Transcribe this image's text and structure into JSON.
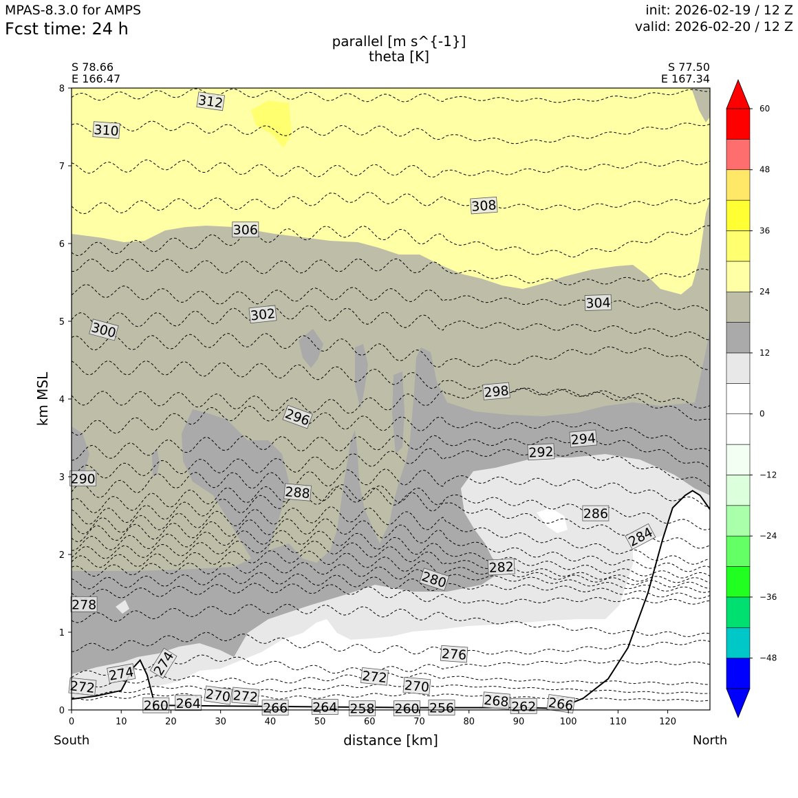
{
  "header": {
    "model": "MPAS-8.3.0 for AMPS",
    "fcst_time": "Fcst time:   24 h",
    "init": "init: 2026-02-19 / 12 Z",
    "valid": "valid: 2026-02-20 / 12 Z"
  },
  "endpoints": {
    "left_lat": "S 78.66",
    "left_lon": "E 166.47",
    "right_lat": "S 77.50",
    "right_lon": "E 167.34",
    "left_side": "South",
    "right_side": "North"
  },
  "chart_data": {
    "type": "cross-section contour",
    "title": "parallel [m s^{-1}]",
    "subtitle": "theta [K]",
    "xlabel": "distance [km]",
    "ylabel": "km MSL",
    "xlim": [
      0,
      128.5
    ],
    "ylim": [
      0,
      8
    ],
    "x_ticks": [
      0,
      10,
      20,
      30,
      40,
      50,
      60,
      70,
      80,
      90,
      100,
      110,
      120
    ],
    "y_ticks": [
      0,
      1,
      2,
      3,
      4,
      5,
      6,
      7,
      8
    ],
    "colorbar": {
      "ticks": [
        60,
        48,
        36,
        24,
        12,
        0,
        -12,
        -24,
        -36,
        -48
      ],
      "tick_labels": [
        "60",
        "48",
        "36",
        "24",
        "12",
        "0",
        "−12",
        "−24",
        "−36",
        "−48"
      ],
      "levels": [
        -54,
        -48,
        -42,
        -36,
        -30,
        -24,
        -18,
        -12,
        -6,
        0,
        6,
        12,
        18,
        24,
        30,
        36,
        42,
        48,
        54,
        60
      ],
      "colors": [
        "#0000ff",
        "#00c8c8",
        "#00e070",
        "#20ff20",
        "#64ff64",
        "#aaffaa",
        "#dcffdc",
        "#f2fff2",
        "#ffffff",
        "#ffffff",
        "#e8e8e8",
        "#aaaaaa",
        "#bebea8",
        "#ffffa6",
        "#ffff70",
        "#ffff34",
        "#ffe868",
        "#ff6e6e",
        "#ff0000"
      ],
      "under_color": "#0000ff",
      "over_color": "#ff0000"
    },
    "shaded_regions": [
      {
        "level": "18-24",
        "color": "#bebea8"
      },
      {
        "level": "24-30",
        "color": "#ffffa6"
      },
      {
        "level": "30-36",
        "color": "#ffff70"
      },
      {
        "level": "12-18",
        "color": "#aaaaaa"
      },
      {
        "level": "6-12",
        "color": "#e8e8e8"
      },
      {
        "level": "0-6",
        "color": "#ffffff"
      }
    ],
    "theta_labels": [
      {
        "text": "312",
        "x": 28.0,
        "y": 7.83,
        "rot": 8
      },
      {
        "text": "310",
        "x": 7.0,
        "y": 7.46,
        "rot": 4
      },
      {
        "text": "308",
        "x": 83.0,
        "y": 6.49,
        "rot": -4
      },
      {
        "text": "306",
        "x": 35.0,
        "y": 6.18,
        "rot": 0
      },
      {
        "text": "304",
        "x": 106.0,
        "y": 5.24,
        "rot": -2
      },
      {
        "text": "302",
        "x": 38.5,
        "y": 5.09,
        "rot": -6
      },
      {
        "text": "300",
        "x": 6.5,
        "y": 4.89,
        "rot": 15
      },
      {
        "text": "298",
        "x": 85.5,
        "y": 4.1,
        "rot": -5
      },
      {
        "text": "296",
        "x": 45.5,
        "y": 3.77,
        "rot": 20
      },
      {
        "text": "294",
        "x": 103.0,
        "y": 3.49,
        "rot": -5
      },
      {
        "text": "292",
        "x": 94.5,
        "y": 3.32,
        "rot": -3
      },
      {
        "text": "290",
        "x": 2.3,
        "y": 2.98,
        "rot": 0
      },
      {
        "text": "288",
        "x": 45.5,
        "y": 2.8,
        "rot": 5
      },
      {
        "text": "286",
        "x": 105.5,
        "y": 2.53,
        "rot": 0
      },
      {
        "text": "284",
        "x": 114.5,
        "y": 2.23,
        "rot": -28
      },
      {
        "text": "282",
        "x": 86.5,
        "y": 1.84,
        "rot": -3
      },
      {
        "text": "280",
        "x": 73.0,
        "y": 1.68,
        "rot": 18
      },
      {
        "text": "278",
        "x": 2.5,
        "y": 1.36,
        "rot": 0
      },
      {
        "text": "276",
        "x": 77.0,
        "y": 0.72,
        "rot": 4
      },
      {
        "text": "274",
        "x": 10.0,
        "y": 0.47,
        "rot": -10
      },
      {
        "text": "274",
        "x": 18.5,
        "y": 0.6,
        "rot": -58
      },
      {
        "text": "272",
        "x": 2.2,
        "y": 0.3,
        "rot": 6
      },
      {
        "text": "272",
        "x": 61.0,
        "y": 0.43,
        "rot": 6
      },
      {
        "text": "270",
        "x": 69.5,
        "y": 0.31,
        "rot": 5
      },
      {
        "text": "272",
        "x": 35.0,
        "y": 0.18,
        "rot": 5
      },
      {
        "text": "270",
        "x": 29.5,
        "y": 0.19,
        "rot": 8
      },
      {
        "text": "268",
        "x": 85.5,
        "y": 0.12,
        "rot": 5
      },
      {
        "text": "266",
        "x": 98.5,
        "y": 0.08,
        "rot": 8
      },
      {
        "text": "262",
        "x": 91.0,
        "y": 0.05,
        "rot": 0
      },
      {
        "text": "264",
        "x": 23.5,
        "y": 0.09,
        "rot": 0
      },
      {
        "text": "260",
        "x": 17.0,
        "y": 0.06,
        "rot": 0
      },
      {
        "text": "266",
        "x": 41.0,
        "y": 0.03,
        "rot": 0
      },
      {
        "text": "264",
        "x": 51.0,
        "y": 0.04,
        "rot": 0
      },
      {
        "text": "258",
        "x": 58.5,
        "y": 0.02,
        "rot": 0
      },
      {
        "text": "260",
        "x": 67.5,
        "y": 0.02,
        "rot": 0
      },
      {
        "text": "256",
        "x": 74.5,
        "y": 0.03,
        "rot": 0
      }
    ],
    "theta_lines": [
      {
        "theta": 312,
        "y": [
          7.88,
          7.9,
          7.92,
          7.95,
          7.93,
          7.9,
          7.88,
          7.87,
          7.88,
          7.86,
          7.85,
          7.83,
          7.88,
          7.93,
          7.98
        ],
        "amp": 0.05
      },
      {
        "theta": 310,
        "y": [
          7.48,
          7.5,
          7.52,
          7.48,
          7.46,
          7.44,
          7.46,
          7.45,
          7.4,
          7.34,
          7.3,
          7.36,
          7.42,
          7.5,
          7.55
        ],
        "amp": 0.06
      },
      {
        "theta": 309,
        "y": [
          6.97,
          6.98,
          7.02,
          6.98,
          6.95,
          6.92,
          6.94,
          6.95,
          6.92,
          6.9,
          6.93,
          6.97,
          7.0,
          7.03,
          7.05
        ],
        "amp": 0.07
      },
      {
        "theta": 308,
        "y": [
          6.45,
          6.46,
          6.5,
          6.52,
          6.5,
          6.54,
          6.6,
          6.58,
          6.55,
          6.5,
          6.47,
          6.46,
          6.5,
          6.53,
          6.55
        ],
        "amp": 0.07
      },
      {
        "theta": 306,
        "y": [
          5.92,
          5.95,
          5.98,
          6.03,
          6.08,
          6.12,
          6.16,
          6.12,
          6.05,
          5.98,
          5.9,
          5.86,
          5.95,
          6.1,
          6.2
        ],
        "amp": 0.08
      },
      {
        "theta": 305,
        "y": [
          5.72,
          5.72,
          5.72,
          5.7,
          5.69,
          5.7,
          5.72,
          5.73,
          5.68,
          5.6,
          5.53,
          5.5,
          5.52,
          5.58,
          5.65
        ],
        "amp": 0.08
      },
      {
        "theta": 304,
        "y": [
          5.4,
          5.38,
          5.34,
          5.3,
          5.3,
          5.34,
          5.36,
          5.34,
          5.32,
          5.28,
          5.25,
          5.24,
          5.23,
          5.2,
          5.15
        ],
        "amp": 0.08
      },
      {
        "theta": 302,
        "y": [
          5.02,
          5.02,
          5.02,
          5.05,
          5.1,
          5.12,
          5.08,
          5.02,
          4.98,
          4.95,
          4.93,
          4.92,
          4.9,
          4.85,
          4.8
        ],
        "amp": 0.09
      },
      {
        "theta": 300,
        "y": [
          4.72,
          4.72,
          4.73,
          4.75,
          4.76,
          4.73,
          4.68,
          4.6,
          4.5,
          4.45,
          4.5,
          4.6,
          4.64,
          4.6,
          4.4
        ],
        "amp": 0.09
      },
      {
        "theta": 299,
        "y": [
          4.4,
          4.4,
          4.4,
          4.38,
          4.37,
          4.35,
          4.32,
          4.28,
          4.22,
          4.15,
          4.1,
          4.08,
          4.06,
          4.0,
          3.9
        ],
        "amp": 0.09
      },
      {
        "theta": 298,
        "y": [
          4.01,
          4.01,
          4.0,
          3.98,
          3.95,
          3.92,
          3.9,
          3.95,
          4.02,
          4.07,
          4.1,
          4.08,
          4.02,
          3.9,
          3.7
        ],
        "amp": 0.09
      },
      {
        "theta": 296,
        "y": [
          3.62,
          3.65,
          3.7,
          3.8,
          3.82,
          3.78,
          3.7,
          3.68,
          3.68,
          3.66,
          3.66,
          3.68,
          3.62,
          3.5,
          3.3
        ],
        "amp": 0.09
      },
      {
        "theta": 294,
        "y": [
          3.3,
          3.33,
          3.38,
          3.42,
          3.44,
          3.42,
          3.42,
          3.44,
          3.44,
          3.44,
          3.45,
          3.48,
          3.44,
          3.3,
          3.1
        ],
        "amp": 0.09
      },
      {
        "theta": 292,
        "y": [
          3.05,
          3.08,
          3.12,
          3.14,
          3.14,
          3.15,
          3.2,
          3.24,
          3.28,
          3.3,
          3.32,
          3.3,
          3.22,
          3.05,
          2.9
        ],
        "amp": 0.09
      },
      {
        "theta": 290,
        "y": [
          2.8,
          2.85,
          2.95,
          2.96,
          2.95,
          2.96,
          2.99,
          3.0,
          2.98,
          2.96,
          2.94,
          2.92,
          2.87,
          2.75,
          2.65
        ],
        "amp": 0.1
      },
      {
        "theta": 289,
        "y": [
          2.62,
          2.65,
          2.7,
          2.75,
          2.77,
          2.78,
          2.8,
          2.78,
          2.74,
          2.7,
          2.66,
          2.6,
          2.55,
          2.45,
          2.35
        ],
        "amp": 0.1
      },
      {
        "theta": 288,
        "y": [
          2.48,
          2.5,
          2.55,
          2.6,
          2.65,
          2.72,
          2.78,
          2.74,
          2.65,
          2.55,
          2.48,
          2.4,
          2.3,
          2.2,
          2.1
        ],
        "amp": 0.1
      },
      {
        "theta": 287,
        "y": [
          2.36,
          2.38,
          2.42,
          2.45,
          2.48,
          2.5,
          2.52,
          2.48,
          2.4,
          2.3,
          2.22,
          2.14,
          2.05,
          1.95,
          1.9
        ],
        "amp": 0.1
      },
      {
        "theta": 286,
        "y": [
          2.26,
          2.28,
          2.3,
          2.32,
          2.35,
          2.36,
          2.36,
          2.3,
          2.22,
          2.1,
          2.02,
          1.96,
          1.9,
          1.85,
          1.8
        ],
        "amp": 0.1
      },
      {
        "theta": 285,
        "y": [
          2.14,
          2.15,
          2.17,
          2.2,
          2.22,
          2.22,
          2.2,
          2.14,
          2.05,
          1.96,
          1.9,
          1.84,
          1.78,
          1.75,
          1.72
        ],
        "amp": 0.09
      },
      {
        "theta": 284,
        "y": [
          2.02,
          2.03,
          2.05,
          2.08,
          2.1,
          2.1,
          2.08,
          2.02,
          1.94,
          1.86,
          1.8,
          1.74,
          1.7,
          1.68,
          1.66
        ],
        "amp": 0.08
      },
      {
        "theta": 283,
        "y": [
          1.9,
          1.92,
          1.93,
          1.95,
          1.97,
          1.97,
          1.94,
          1.88,
          1.82,
          1.78,
          1.74,
          1.7,
          1.66,
          1.62,
          1.6
        ],
        "amp": 0.08
      },
      {
        "theta": 282,
        "y": [
          1.78,
          1.8,
          1.82,
          1.82,
          1.83,
          1.83,
          1.8,
          1.76,
          1.72,
          1.7,
          1.68,
          1.64,
          1.6,
          1.56,
          1.54
        ],
        "amp": 0.07
      },
      {
        "theta": 281,
        "y": [
          1.62,
          1.64,
          1.66,
          1.68,
          1.7,
          1.68,
          1.66,
          1.63,
          1.6,
          1.58,
          1.58,
          1.56,
          1.52,
          1.48,
          1.46
        ],
        "amp": 0.07
      },
      {
        "theta": 280,
        "y": [
          1.48,
          1.5,
          1.52,
          1.55,
          1.57,
          1.56,
          1.55,
          1.5,
          1.44,
          1.38,
          1.4,
          1.42,
          1.42,
          1.4,
          1.38
        ],
        "amp": 0.06
      },
      {
        "theta": 278,
        "y": [
          1.18,
          1.2,
          1.24,
          1.27,
          1.3,
          1.3,
          1.28,
          1.25,
          1.2,
          1.15,
          1.1,
          1.05,
          1.0,
          0.98,
          0.96
        ],
        "amp": 0.06
      },
      {
        "theta": 276,
        "y": [
          0.8,
          0.82,
          0.9,
          0.95,
          0.92,
          0.85,
          0.8,
          0.78,
          0.76,
          0.74,
          0.74,
          0.78,
          0.82,
          0.85,
          0.88
        ],
        "amp": 0.05
      },
      {
        "theta": 274,
        "y": [
          0.45,
          0.5,
          0.6,
          0.68,
          0.62,
          0.55,
          0.5,
          0.52,
          0.55,
          0.58,
          0.6,
          0.62,
          0.62,
          0.6,
          0.6
        ],
        "amp": 0.04
      },
      {
        "theta": 272,
        "y": [
          0.3,
          0.34,
          0.42,
          0.4,
          0.36,
          0.38,
          0.42,
          0.45,
          0.44,
          0.4,
          0.38,
          0.36,
          0.36,
          0.34,
          0.34
        ],
        "amp": 0.03
      },
      {
        "theta": 270,
        "y": [
          0.2,
          0.22,
          0.3,
          0.28,
          0.24,
          0.26,
          0.3,
          0.32,
          0.32,
          0.3,
          0.28,
          0.26,
          0.24,
          0.22,
          0.22
        ],
        "amp": 0.02
      },
      {
        "theta": 268,
        "y": [
          0.14,
          0.16,
          0.2,
          0.18,
          0.16,
          0.16,
          0.18,
          0.2,
          0.2,
          0.18,
          0.16,
          0.15,
          0.14,
          0.13,
          0.12
        ],
        "amp": 0.02
      }
    ],
    "terrain_km": [
      [
        0,
        0.14
      ],
      [
        5,
        0.18
      ],
      [
        10,
        0.25
      ],
      [
        12.5,
        0.55
      ],
      [
        13.8,
        0.64
      ],
      [
        15.2,
        0.45
      ],
      [
        16.8,
        0.06
      ],
      [
        30,
        0.05
      ],
      [
        50,
        0.04
      ],
      [
        70,
        0.03
      ],
      [
        90,
        0.03
      ],
      [
        98,
        0.02
      ],
      [
        103,
        0.15
      ],
      [
        108,
        0.4
      ],
      [
        112,
        0.8
      ],
      [
        116,
        1.5
      ],
      [
        119,
        2.2
      ],
      [
        121,
        2.6
      ],
      [
        123.5,
        2.76
      ],
      [
        125,
        2.82
      ],
      [
        126.5,
        2.76
      ],
      [
        128.5,
        2.58
      ]
    ]
  }
}
